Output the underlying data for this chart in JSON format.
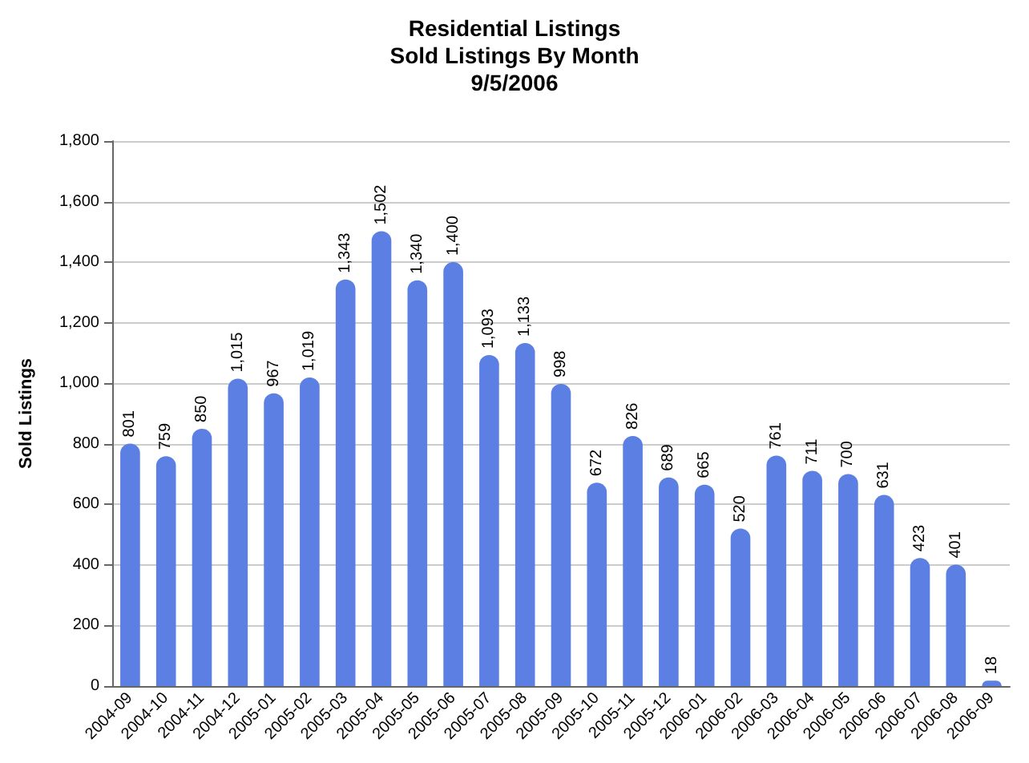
{
  "chart_data": {
    "type": "bar",
    "title": "Residential Listings\nSold Listings By Month\n9/5/2006",
    "ylabel": "Sold Listings",
    "categories": [
      "2004-09",
      "2004-10",
      "2004-11",
      "2004-12",
      "2005-01",
      "2005-02",
      "2005-03",
      "2005-04",
      "2005-05",
      "2005-06",
      "2005-07",
      "2005-08",
      "2005-09",
      "2005-10",
      "2005-11",
      "2005-12",
      "2006-01",
      "2006-02",
      "2006-03",
      "2006-04",
      "2006-05",
      "2006-06",
      "2006-07",
      "2006-08",
      "2006-09"
    ],
    "values": [
      801,
      759,
      850,
      1015,
      967,
      1019,
      1343,
      1502,
      1340,
      1400,
      1093,
      1133,
      998,
      672,
      826,
      689,
      665,
      520,
      761,
      711,
      700,
      631,
      423,
      401,
      18
    ],
    "value_labels": [
      "801",
      "759",
      "850",
      "1,015",
      "967",
      "1,019",
      "1,343",
      "1,502",
      "1,340",
      "1,400",
      "1,093",
      "1,133",
      "998",
      "672",
      "826",
      "689",
      "665",
      "520",
      "761",
      "711",
      "700",
      "631",
      "423",
      "401",
      "18"
    ],
    "color": "#5b7fe3",
    "ylim": [
      0,
      1800
    ],
    "yticks": [
      {
        "value": 0,
        "label": "0"
      },
      {
        "value": 200,
        "label": "200"
      },
      {
        "value": 400,
        "label": "400"
      },
      {
        "value": 600,
        "label": "600"
      },
      {
        "value": 800,
        "label": "800"
      },
      {
        "value": 1000,
        "label": "1,000"
      },
      {
        "value": 1200,
        "label": "1,200"
      },
      {
        "value": 1400,
        "label": "1,400"
      },
      {
        "value": 1600,
        "label": "1,600"
      },
      {
        "value": 1800,
        "label": "1,800"
      }
    ],
    "grid": "y"
  }
}
